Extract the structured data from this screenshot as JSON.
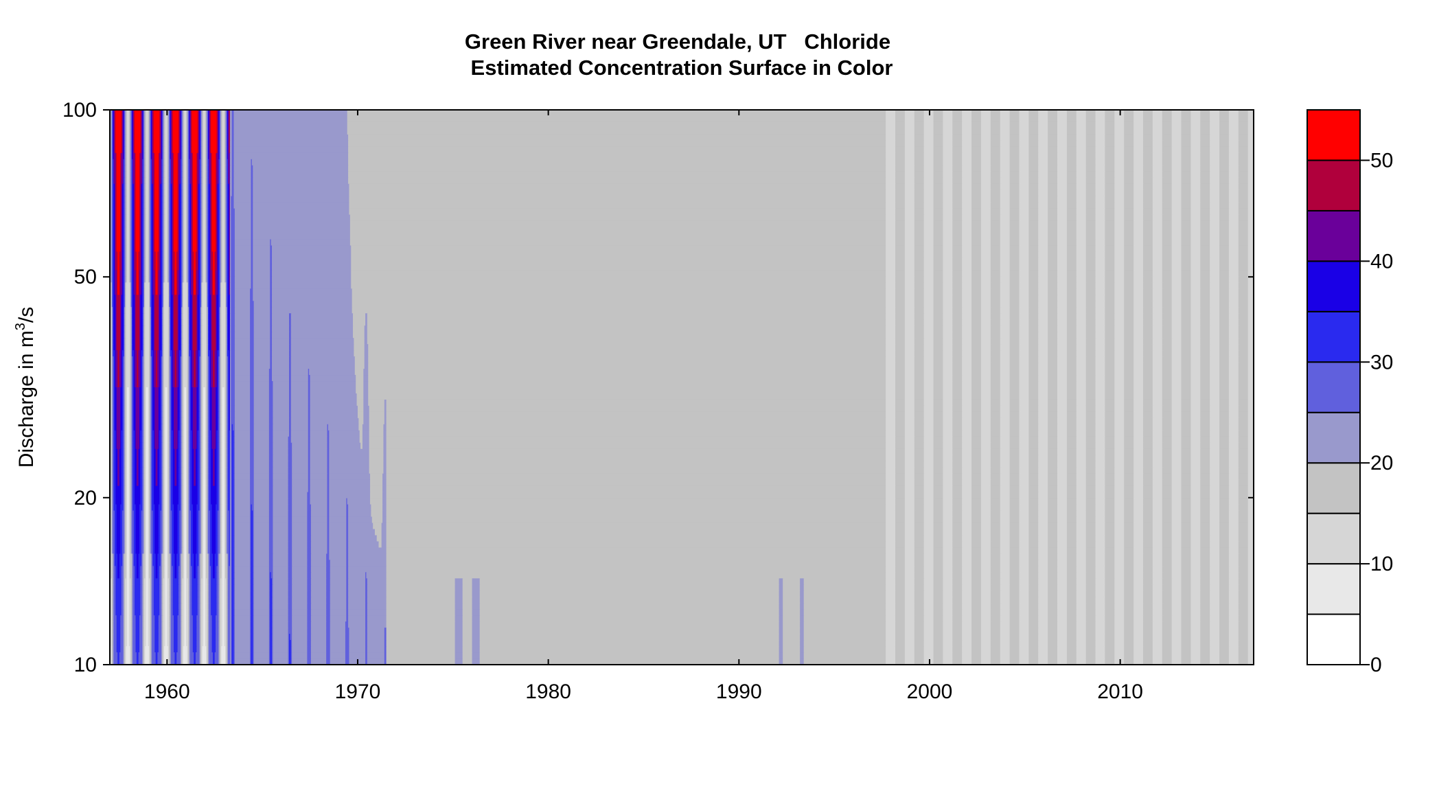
{
  "chart_data": {
    "type": "heatmap",
    "title": "Green River near Greendale, UT   Chloride",
    "subtitle": "Estimated Concentration Surface in Color",
    "xlabel": "",
    "ylabel": "Discharge in m³/s",
    "ylabel_parts": {
      "pre": "Discharge in m",
      "sup": "3",
      "post": "/s"
    },
    "x_range": [
      1957,
      2017
    ],
    "x_ticks": [
      1960,
      1970,
      1980,
      1990,
      2000,
      2010
    ],
    "y_scale": "log",
    "y_range": [
      10,
      100
    ],
    "y_ticks": [
      10,
      20,
      50,
      100
    ],
    "grid": false,
    "colorbar": {
      "breaks": [
        0,
        5,
        10,
        15,
        20,
        25,
        30,
        35,
        40,
        45,
        50,
        55
      ],
      "colors": [
        "#ffffff",
        "#e8e8e8",
        "#d6d6d6",
        "#c3c3c3",
        "#9999cc",
        "#6060dd",
        "#2a2aef",
        "#1a00e6",
        "#6a009a",
        "#b0003c",
        "#ff0000"
      ],
      "tick_labels": [
        0,
        10,
        20,
        30,
        40,
        50
      ]
    },
    "regions": [
      {
        "x": [
          1957,
          1963.3
        ],
        "description": "strongly seasonal: concentration alternates between ~5-15 (light bands) and ~30-55 (blue/purple/red) each year, highest at high discharge"
      },
      {
        "x": [
          1963.3,
          1971.5
        ],
        "value_range": [
          20,
          30
        ],
        "note": "mostly 20-25 with annual 25-35 streaks declining over time"
      },
      {
        "x": [
          1971.5,
          1997.5
        ],
        "value_range": [
          15,
          20
        ],
        "note": "uniform 15-20 with isolated 20-25 spikes near 1975-1976 and 1992-1994"
      },
      {
        "x": [
          1997.5,
          2017
        ],
        "value_range": [
          10,
          20
        ],
        "note": "annual alternation between 10-15 and 15-20 bands"
      }
    ]
  }
}
